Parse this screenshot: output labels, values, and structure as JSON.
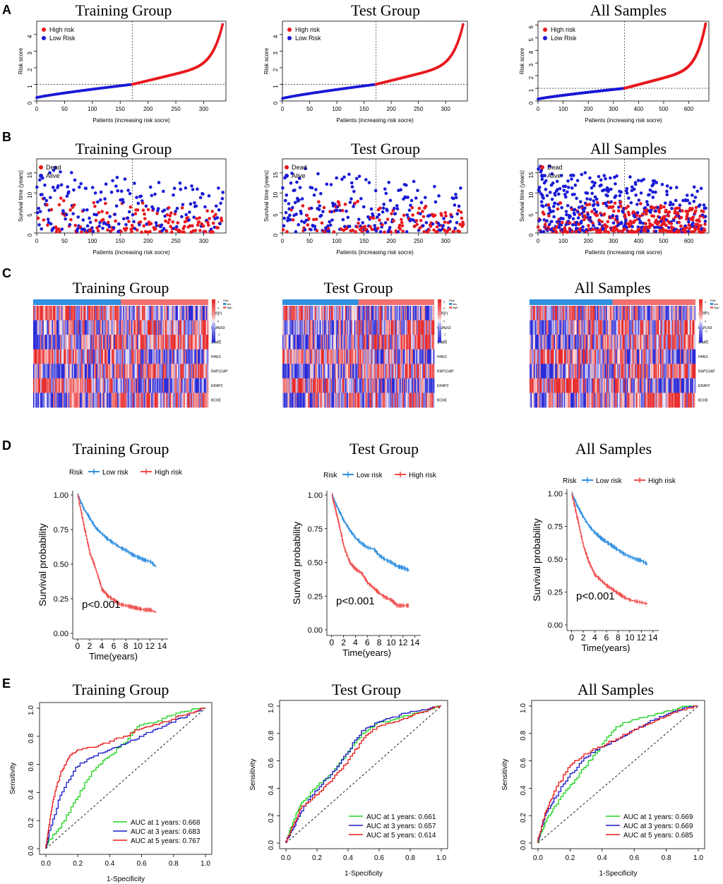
{
  "colors": {
    "red": "#e8181e",
    "blue": "#1a1ad6",
    "km_low": "#2f8fe0",
    "km_high": "#f04b4b",
    "roc1": "#1ed21e",
    "roc3": "#1818c8",
    "roc5": "#e81818",
    "hm_low": "#2b2bd8",
    "hm_high": "#e82a2a",
    "bar_low": "#2f8fe0",
    "bar_high": "#f07070"
  },
  "panel_labels": [
    "A",
    "B",
    "C",
    "D",
    "E"
  ],
  "group_titles": [
    "Training Group",
    "Test Group",
    "All Samples"
  ],
  "chart_data": [
    {
      "panel": "A",
      "type": "scatter",
      "ylabel": "Risk score",
      "xlabel": "Patients (increasing risk socre)",
      "legend": [
        "High risk",
        "Low Risk"
      ],
      "charts": [
        {
          "title": "Training Group",
          "n": 335,
          "cutoff_index": 172,
          "cutoff_value": 1.0,
          "min": 0.2,
          "max": 4.6,
          "xlim": [
            0,
            340
          ],
          "ylim": [
            0,
            4.8
          ],
          "xticks": [
            0,
            50,
            100,
            150,
            200,
            250,
            300
          ],
          "yticks": [
            0,
            1,
            2,
            3,
            4
          ]
        },
        {
          "title": "Test Group",
          "n": 333,
          "cutoff_index": 172,
          "cutoff_value": 1.0,
          "min": 0.15,
          "max": 4.6,
          "xlim": [
            0,
            340
          ],
          "ylim": [
            0,
            4.8
          ],
          "xticks": [
            0,
            50,
            100,
            150,
            200,
            250,
            300
          ],
          "yticks": [
            0,
            1,
            2,
            3,
            4
          ]
        },
        {
          "title": "All Samples",
          "n": 668,
          "cutoff_index": 344,
          "cutoff_value": 1.0,
          "min": 0.15,
          "max": 6.1,
          "xlim": [
            0,
            680
          ],
          "ylim": [
            0,
            6.3
          ],
          "xticks": [
            0,
            100,
            200,
            300,
            400,
            500,
            600
          ],
          "yticks": [
            0,
            1,
            2,
            3,
            4,
            5,
            6
          ]
        }
      ]
    },
    {
      "panel": "B",
      "type": "scatter",
      "ylabel": "Survival time (years)",
      "xlabel": "Patients (increasing risk socre)",
      "legend": [
        "Dead",
        "Alive"
      ],
      "charts": [
        {
          "title": "Training Group",
          "n": 335,
          "cutoff_index": 172,
          "xlim": [
            0,
            340
          ],
          "ylim": [
            0,
            18.5
          ],
          "xticks": [
            0,
            50,
            100,
            150,
            200,
            250,
            300
          ],
          "yticks": [
            0,
            5,
            10,
            15
          ]
        },
        {
          "title": "Test Group",
          "n": 333,
          "cutoff_index": 172,
          "xlim": [
            0,
            340
          ],
          "ylim": [
            0,
            18.5
          ],
          "xticks": [
            0,
            50,
            100,
            150,
            200,
            250,
            300
          ],
          "yticks": [
            0,
            5,
            10,
            15
          ]
        },
        {
          "title": "All Samples",
          "n": 668,
          "cutoff_index": 344,
          "xlim": [
            0,
            680
          ],
          "ylim": [
            0,
            18.5
          ],
          "xticks": [
            0,
            100,
            200,
            300,
            400,
            500,
            600
          ],
          "yticks": [
            0,
            5,
            10,
            15
          ]
        }
      ]
    },
    {
      "panel": "C",
      "type": "heatmap",
      "genes": [
        "JSRP1",
        "HAPLN3",
        "SNAI2",
        "HHEX",
        "RAP1GAP",
        "ERAP2",
        "BCHE"
      ],
      "legend_title": "Risk",
      "legend_items": [
        "low",
        "high"
      ],
      "charts": [
        {
          "title": "Training Group",
          "colorbar_ticks": [
            "3",
            "2",
            "1",
            "0",
            "-1",
            "-2",
            "-3"
          ]
        },
        {
          "title": "Test Group",
          "colorbar_ticks": [
            "3",
            "2",
            "1",
            "0",
            "-1",
            "-2",
            "-3"
          ]
        },
        {
          "title": "All Samples",
          "colorbar_ticks": [
            "4",
            "2",
            "0",
            "-2",
            "-4"
          ]
        }
      ]
    },
    {
      "panel": "D",
      "type": "line",
      "legend_title": "Risk",
      "legend": [
        "Low risk",
        "High risk"
      ],
      "xlabel": "Time(years)",
      "ylabel": "Survival probability",
      "xticks": [
        0,
        2,
        4,
        6,
        8,
        10,
        12,
        14
      ],
      "yticks": [
        "0.00",
        "0.25",
        "0.50",
        "0.75",
        "1.00"
      ],
      "charts": [
        {
          "title": "Training Group",
          "pvalue": "p<0.001",
          "low": {
            "t": [
              0,
              1,
              2,
              3,
              4,
              5,
              6,
              7,
              8,
              9,
              10,
              11,
              12,
              13
            ],
            "s": [
              1.0,
              0.9,
              0.83,
              0.76,
              0.72,
              0.68,
              0.65,
              0.62,
              0.6,
              0.57,
              0.55,
              0.53,
              0.52,
              0.48
            ]
          },
          "high": {
            "t": [
              0,
              1,
              2,
              3,
              4,
              5,
              6,
              7,
              8,
              9,
              10,
              11,
              12,
              13
            ],
            "s": [
              1.0,
              0.78,
              0.58,
              0.46,
              0.32,
              0.27,
              0.24,
              0.21,
              0.2,
              0.19,
              0.18,
              0.17,
              0.17,
              0.15
            ]
          }
        },
        {
          "title": "Test Group",
          "pvalue": "p<0.001",
          "low": {
            "t": [
              0,
              1,
              2,
              3,
              4,
              5,
              6,
              7,
              8,
              9,
              10,
              11,
              12,
              13
            ],
            "s": [
              1.0,
              0.9,
              0.81,
              0.74,
              0.68,
              0.64,
              0.61,
              0.6,
              0.55,
              0.52,
              0.5,
              0.47,
              0.46,
              0.44
            ]
          },
          "high": {
            "t": [
              0,
              1,
              2,
              3,
              4,
              5,
              6,
              7,
              8,
              9,
              10,
              11,
              12,
              13
            ],
            "s": [
              1.0,
              0.82,
              0.62,
              0.5,
              0.45,
              0.42,
              0.35,
              0.31,
              0.27,
              0.24,
              0.22,
              0.18,
              0.18,
              0.18
            ]
          }
        },
        {
          "title": "All Samples",
          "pvalue": "p<0.001",
          "low": {
            "t": [
              0,
              1,
              2,
              3,
              4,
              5,
              6,
              7,
              8,
              9,
              10,
              11,
              12,
              13
            ],
            "s": [
              1.0,
              0.9,
              0.82,
              0.75,
              0.7,
              0.66,
              0.63,
              0.6,
              0.57,
              0.54,
              0.52,
              0.5,
              0.49,
              0.46
            ]
          },
          "high": {
            "t": [
              0,
              1,
              2,
              3,
              4,
              5,
              6,
              7,
              8,
              9,
              10,
              11,
              12,
              13
            ],
            "s": [
              1.0,
              0.8,
              0.6,
              0.47,
              0.38,
              0.34,
              0.3,
              0.27,
              0.24,
              0.21,
              0.19,
              0.18,
              0.17,
              0.16
            ]
          }
        }
      ]
    },
    {
      "panel": "E",
      "type": "line",
      "xlabel": "1-Specificity",
      "ylabel": "Sensitivity",
      "xticks": [
        "0.0",
        "0.2",
        "0.4",
        "0.6",
        "0.8",
        "1.0"
      ],
      "yticks": [
        "0.0",
        "0.2",
        "0.4",
        "0.6",
        "0.8",
        "1.0"
      ],
      "charts": [
        {
          "title": "Training Group",
          "legend": [
            "AUC at 1 years: 0.668",
            "AUC at 3 years: 0.683",
            "AUC at 5 years: 0.767"
          ],
          "series": [
            {
              "name": "1 years",
              "x": [
                0,
                0.02,
                0.1,
                0.2,
                0.3,
                0.4,
                0.5,
                0.6,
                0.7,
                0.8,
                0.9,
                1.0
              ],
              "y": [
                0,
                0.05,
                0.15,
                0.35,
                0.55,
                0.65,
                0.75,
                0.88,
                0.9,
                0.95,
                0.98,
                1.0
              ]
            },
            {
              "name": "3 years",
              "x": [
                0,
                0.02,
                0.1,
                0.2,
                0.3,
                0.4,
                0.5,
                0.6,
                0.7,
                0.8,
                0.9,
                1.0
              ],
              "y": [
                0,
                0.08,
                0.38,
                0.58,
                0.65,
                0.7,
                0.74,
                0.8,
                0.85,
                0.9,
                0.95,
                1.0
              ]
            },
            {
              "name": "5 years",
              "x": [
                0,
                0.02,
                0.05,
                0.1,
                0.15,
                0.2,
                0.3,
                0.4,
                0.5,
                0.6,
                0.7,
                0.8,
                0.9,
                1.0
              ],
              "y": [
                0,
                0.15,
                0.35,
                0.55,
                0.65,
                0.7,
                0.72,
                0.75,
                0.8,
                0.85,
                0.88,
                0.92,
                0.96,
                1.0
              ]
            }
          ]
        },
        {
          "title": "Test Group",
          "legend": [
            "AUC at 1 years: 0.661",
            "AUC at 3 years: 0.657",
            "AUC at 5 years: 0.614"
          ],
          "series": [
            {
              "name": "1 years",
              "x": [
                0,
                0.05,
                0.1,
                0.2,
                0.3,
                0.4,
                0.5,
                0.6,
                0.7,
                0.8,
                0.9,
                1.0
              ],
              "y": [
                0,
                0.15,
                0.28,
                0.4,
                0.5,
                0.65,
                0.8,
                0.88,
                0.9,
                0.93,
                0.96,
                1.0
              ]
            },
            {
              "name": "3 years",
              "x": [
                0,
                0.05,
                0.1,
                0.2,
                0.3,
                0.4,
                0.5,
                0.6,
                0.7,
                0.8,
                0.9,
                1.0
              ],
              "y": [
                0,
                0.1,
                0.22,
                0.38,
                0.5,
                0.65,
                0.82,
                0.88,
                0.92,
                0.95,
                0.97,
                1.0
              ]
            },
            {
              "name": "5 years",
              "x": [
                0,
                0.05,
                0.1,
                0.2,
                0.3,
                0.4,
                0.5,
                0.6,
                0.7,
                0.8,
                0.9,
                1.0
              ],
              "y": [
                0,
                0.12,
                0.25,
                0.35,
                0.45,
                0.58,
                0.75,
                0.85,
                0.88,
                0.92,
                0.96,
                1.0
              ]
            }
          ]
        },
        {
          "title": "All Samples",
          "legend": [
            "AUC at 1 years: 0.669",
            "AUC at 3 years: 0.669",
            "AUC at 5 years: 0.685"
          ],
          "series": [
            {
              "name": "1 years",
              "x": [
                0,
                0.05,
                0.1,
                0.2,
                0.3,
                0.4,
                0.5,
                0.6,
                0.7,
                0.8,
                0.9,
                1.0
              ],
              "y": [
                0,
                0.15,
                0.25,
                0.4,
                0.55,
                0.7,
                0.85,
                0.9,
                0.93,
                0.96,
                0.99,
                1.0
              ]
            },
            {
              "name": "3 years",
              "x": [
                0,
                0.05,
                0.1,
                0.2,
                0.3,
                0.4,
                0.5,
                0.6,
                0.7,
                0.8,
                0.9,
                1.0
              ],
              "y": [
                0,
                0.2,
                0.3,
                0.48,
                0.62,
                0.7,
                0.75,
                0.82,
                0.88,
                0.93,
                0.97,
                1.0
              ]
            },
            {
              "name": "5 years",
              "x": [
                0,
                0.05,
                0.1,
                0.2,
                0.3,
                0.4,
                0.5,
                0.6,
                0.7,
                0.8,
                0.9,
                1.0
              ],
              "y": [
                0,
                0.22,
                0.35,
                0.55,
                0.65,
                0.7,
                0.76,
                0.82,
                0.87,
                0.92,
                0.97,
                1.0
              ]
            }
          ]
        }
      ]
    }
  ]
}
